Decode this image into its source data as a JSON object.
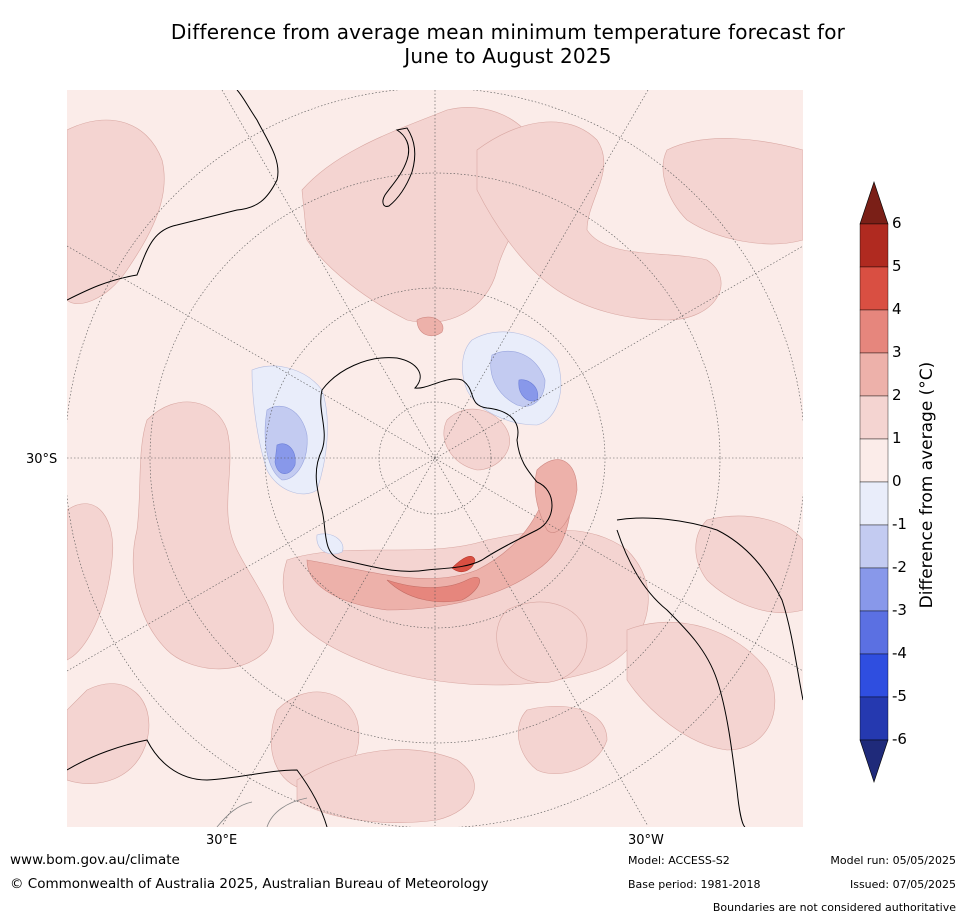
{
  "title_line1": "Difference from average mean minimum temperature forecast for",
  "title_line2": "June to August 2025",
  "map": {
    "projection": "south-polar-stereographic",
    "labels": {
      "lat_30s": "30°S",
      "lon_30e": "30°E",
      "lon_30w": "30°W"
    }
  },
  "colorbar": {
    "title": "Difference from average (°C)",
    "ticks": [
      "6",
      "5",
      "4",
      "3",
      "2",
      "1",
      "0",
      "-1",
      "-2",
      "-3",
      "-4",
      "-5",
      "-6"
    ],
    "bins": [
      {
        "range": "above 6",
        "color": "#7a1f17"
      },
      {
        "range": "5 to 6",
        "color": "#b02a20"
      },
      {
        "range": "4 to 5",
        "color": "#d94f42"
      },
      {
        "range": "3 to 4",
        "color": "#e6867d"
      },
      {
        "range": "2 to 3",
        "color": "#edb1aa"
      },
      {
        "range": "1 to 2",
        "color": "#f4d4d1"
      },
      {
        "range": "0 to 1",
        "color": "#fbece9"
      },
      {
        "range": "-1 to 0",
        "color": "#e9edfa"
      },
      {
        "range": "-2 to -1",
        "color": "#c3cbf1"
      },
      {
        "range": "-3 to -2",
        "color": "#8898ea"
      },
      {
        "range": "-4 to -3",
        "color": "#5b70e2"
      },
      {
        "range": "-5 to -4",
        "color": "#2f4ee0"
      },
      {
        "range": "-6 to -5",
        "color": "#2539b0"
      },
      {
        "range": "below -6",
        "color": "#1f2a7a"
      }
    ]
  },
  "footer": {
    "website": "www.bom.gov.au/climate",
    "copyright": "© Commonwealth of Australia 2025, Australian Bureau of Meteorology",
    "model": "Model: ACCESS-S2",
    "base_period": "Base period: 1981-2018",
    "model_run": "Model run: 05/05/2025",
    "issued": "Issued: 07/05/2025",
    "disclaimer": "Boundaries are not considered authoritative"
  }
}
